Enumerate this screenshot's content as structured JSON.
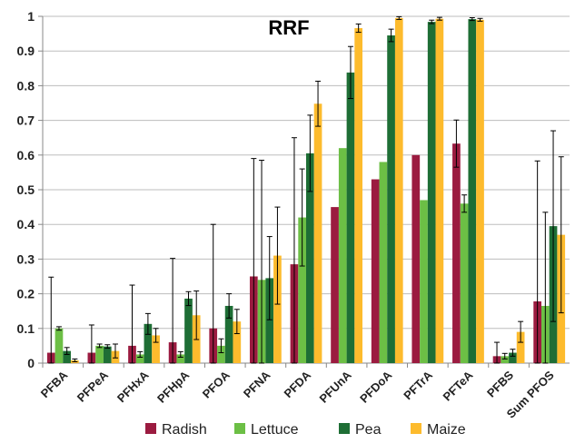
{
  "chart_data": {
    "type": "bar",
    "title": "RRF",
    "xlabel": "",
    "ylabel": "",
    "ylim": [
      0,
      1
    ],
    "yticks": [
      "0",
      "0.1",
      "0.2",
      "0.3",
      "0.4",
      "0.5",
      "0.6",
      "0.7",
      "0.8",
      "0.9",
      "1"
    ],
    "grid": true,
    "legend_position": "bottom",
    "categories": [
      "PFBA",
      "PFPeA",
      "PFHxA",
      "PFHpA",
      "PFOA",
      "PFNA",
      "PFDA",
      "PFUnA",
      "PFDoA",
      "PFTrA",
      "PFTeA",
      "PFBS",
      "Sum PFOS"
    ],
    "series": [
      {
        "name": "Radish",
        "color": "#9b1b40",
        "values": [
          0.03,
          0.03,
          0.05,
          0.06,
          0.1,
          0.25,
          0.285,
          0.45,
          0.53,
          0.6,
          0.633,
          0.02,
          0.178
        ],
        "errors": [
          0.218,
          0.08,
          0.175,
          0.242,
          0.3,
          0.34,
          0.365,
          null,
          null,
          null,
          0.068,
          0.04,
          0.405
        ]
      },
      {
        "name": "Lettuce",
        "color": "#6cbf45",
        "values": [
          0.1,
          0.05,
          0.025,
          0.025,
          0.05,
          0.24,
          0.42,
          0.62,
          0.58,
          0.47,
          0.46,
          0.02,
          0.165
        ],
        "errors": [
          0.005,
          0.005,
          0.008,
          0.008,
          0.02,
          0.345,
          0.14,
          null,
          null,
          null,
          0.025,
          0.008,
          0.27
        ]
      },
      {
        "name": "Pea",
        "color": "#1e6e35",
        "values": [
          0.035,
          0.048,
          0.113,
          0.186,
          0.165,
          0.245,
          0.605,
          0.838,
          0.945,
          0.984,
          0.992,
          0.03,
          0.395
        ],
        "errors": [
          0.01,
          0.005,
          0.03,
          0.02,
          0.035,
          0.12,
          0.11,
          0.075,
          0.018,
          0.005,
          0.004,
          0.01,
          0.275
        ]
      },
      {
        "name": "Maize",
        "color": "#fdbb2d",
        "values": [
          0.008,
          0.035,
          0.08,
          0.138,
          0.12,
          0.31,
          0.748,
          0.966,
          0.995,
          0.993,
          0.99,
          0.09,
          0.37
        ],
        "errors": [
          0.004,
          0.02,
          0.02,
          0.07,
          0.035,
          0.14,
          0.065,
          0.012,
          0.004,
          0.004,
          0.004,
          0.03,
          0.225
        ]
      }
    ]
  }
}
